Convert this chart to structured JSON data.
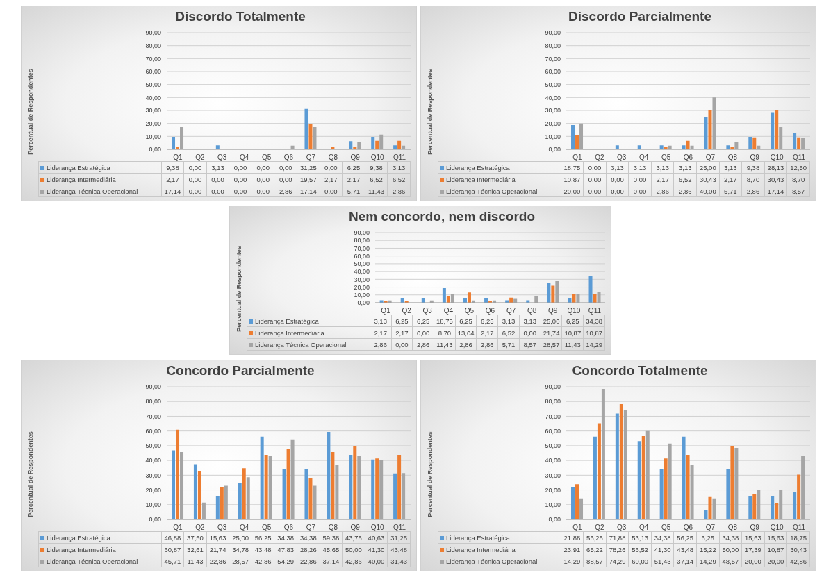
{
  "chart_data": [
    {
      "type": "bar",
      "title": "Discordo Totalmente",
      "ylabel": "Percentual de Respondentes",
      "categories": [
        "Q1",
        "Q2",
        "Q3",
        "Q4",
        "Q5",
        "Q6",
        "Q7",
        "Q8",
        "Q9",
        "Q10",
        "Q11"
      ],
      "ylim": [
        0,
        90
      ],
      "yticks": [
        {
          "value": 0,
          "label": "0,00"
        },
        {
          "value": 10,
          "label": "10,00"
        },
        {
          "value": 20,
          "label": "20,00"
        },
        {
          "value": 30,
          "label": "30,00"
        },
        {
          "value": 40,
          "label": "40,00"
        },
        {
          "value": 50,
          "label": "50,00"
        },
        {
          "value": 60,
          "label": "60,00"
        },
        {
          "value": 70,
          "label": "70,00"
        },
        {
          "value": 80,
          "label": "80,00"
        },
        {
          "value": 90,
          "label": "90,00"
        }
      ],
      "grid": "y",
      "legend": "bottom",
      "series": [
        {
          "name": "Liderança Estratégica",
          "color": "#5b9bd5",
          "values": [
            9.38,
            0,
            3.13,
            0,
            0,
            0,
            31.25,
            0,
            6.25,
            9.38,
            3.13
          ],
          "value_labels": [
            "9,38",
            "0,00",
            "3,13",
            "0,00",
            "0,00",
            "0,00",
            "31,25",
            "0,00",
            "6,25",
            "9,38",
            "3,13"
          ]
        },
        {
          "name": "Liderança Intermediária",
          "color": "#ed7d31",
          "values": [
            2.17,
            0,
            0,
            0,
            0,
            0,
            19.57,
            2.17,
            2.17,
            6.52,
            6.52
          ],
          "value_labels": [
            "2,17",
            "0,00",
            "0,00",
            "0,00",
            "0,00",
            "0,00",
            "19,57",
            "2,17",
            "2,17",
            "6,52",
            "6,52"
          ]
        },
        {
          "name": "Liderança Técnica Operacional",
          "color": "#a5a5a5",
          "values": [
            17.14,
            0,
            0,
            0,
            0,
            2.86,
            17.14,
            0,
            5.71,
            11.43,
            2.86
          ],
          "value_labels": [
            "17,14",
            "0,00",
            "0,00",
            "0,00",
            "0,00",
            "2,86",
            "17,14",
            "0,00",
            "5,71",
            "11,43",
            "2,86"
          ]
        }
      ]
    },
    {
      "type": "bar",
      "title": "Discordo Parcialmente",
      "ylabel": "Percentual de Respondentes",
      "categories": [
        "Q1",
        "Q2",
        "Q3",
        "Q4",
        "Q5",
        "Q6",
        "Q7",
        "Q8",
        "Q9",
        "Q10",
        "Q11"
      ],
      "ylim": [
        0,
        90
      ],
      "yticks": [
        {
          "value": 0,
          "label": "0,00"
        },
        {
          "value": 10,
          "label": "10,00"
        },
        {
          "value": 20,
          "label": "20,00"
        },
        {
          "value": 30,
          "label": "30,00"
        },
        {
          "value": 40,
          "label": "40,00"
        },
        {
          "value": 50,
          "label": "50,00"
        },
        {
          "value": 60,
          "label": "60,00"
        },
        {
          "value": 70,
          "label": "70,00"
        },
        {
          "value": 80,
          "label": "80,00"
        },
        {
          "value": 90,
          "label": "90,00"
        }
      ],
      "grid": "y",
      "legend": "bottom",
      "series": [
        {
          "name": "Liderança Estratégica",
          "color": "#5b9bd5",
          "values": [
            18.75,
            0,
            3.13,
            3.13,
            3.13,
            3.13,
            25,
            3.13,
            9.38,
            28.13,
            12.5
          ],
          "value_labels": [
            "18,75",
            "0,00",
            "3,13",
            "3,13",
            "3,13",
            "3,13",
            "25,00",
            "3,13",
            "9,38",
            "28,13",
            "12,50"
          ]
        },
        {
          "name": "Liderança Intermediária",
          "color": "#ed7d31",
          "values": [
            10.87,
            0,
            0,
            0,
            2.17,
            6.52,
            30.43,
            2.17,
            8.7,
            30.43,
            8.7
          ],
          "value_labels": [
            "10,87",
            "0,00",
            "0,00",
            "0,00",
            "2,17",
            "6,52",
            "30,43",
            "2,17",
            "8,70",
            "30,43",
            "8,70"
          ]
        },
        {
          "name": "Liderança Técnica Operacional",
          "color": "#a5a5a5",
          "values": [
            20,
            0,
            0,
            0,
            2.86,
            2.86,
            40,
            5.71,
            2.86,
            17.14,
            8.57
          ],
          "value_labels": [
            "20,00",
            "0,00",
            "0,00",
            "0,00",
            "2,86",
            "2,86",
            "40,00",
            "5,71",
            "2,86",
            "17,14",
            "8,57"
          ]
        }
      ]
    },
    {
      "type": "bar",
      "title": "Nem concordo, nem discordo",
      "ylabel": "Percentual de Respondentes",
      "categories": [
        "Q1",
        "Q2",
        "Q3",
        "Q4",
        "Q5",
        "Q6",
        "Q7",
        "Q8",
        "Q9",
        "Q10",
        "Q11"
      ],
      "ylim": [
        0,
        90
      ],
      "yticks": [
        {
          "value": 0,
          "label": "0,00"
        },
        {
          "value": 10,
          "label": "10,00"
        },
        {
          "value": 20,
          "label": "20,00"
        },
        {
          "value": 30,
          "label": "30,00"
        },
        {
          "value": 40,
          "label": "40,00"
        },
        {
          "value": 50,
          "label": "50,00"
        },
        {
          "value": 60,
          "label": "60,00"
        },
        {
          "value": 70,
          "label": "70,00"
        },
        {
          "value": 80,
          "label": "80,00"
        },
        {
          "value": 90,
          "label": "90,00"
        }
      ],
      "grid": "y",
      "legend": "bottom",
      "series": [
        {
          "name": "Liderança Estratégica",
          "color": "#5b9bd5",
          "values": [
            3.13,
            6.25,
            6.25,
            18.75,
            6.25,
            6.25,
            3.13,
            3.13,
            25,
            6.25,
            34.38
          ],
          "value_labels": [
            "3,13",
            "6,25",
            "6,25",
            "18,75",
            "6,25",
            "6,25",
            "3,13",
            "3,13",
            "25,00",
            "6,25",
            "34,38"
          ]
        },
        {
          "name": "Liderança Intermediária",
          "color": "#ed7d31",
          "values": [
            2.17,
            2.17,
            0,
            8.7,
            13.04,
            2.17,
            6.52,
            0,
            21.74,
            10.87,
            10.87
          ],
          "value_labels": [
            "2,17",
            "2,17",
            "0,00",
            "8,70",
            "13,04",
            "2,17",
            "6,52",
            "0,00",
            "21,74",
            "10,87",
            "10,87"
          ]
        },
        {
          "name": "Liderança Técnica Operacional",
          "color": "#a5a5a5",
          "values": [
            2.86,
            0,
            2.86,
            11.43,
            2.86,
            2.86,
            5.71,
            8.57,
            28.57,
            11.43,
            14.29
          ],
          "value_labels": [
            "2,86",
            "0,00",
            "2,86",
            "11,43",
            "2,86",
            "2,86",
            "5,71",
            "8,57",
            "28,57",
            "11,43",
            "14,29"
          ]
        }
      ]
    },
    {
      "type": "bar",
      "title": "Concordo Parcialmente",
      "ylabel": "Percentual de Respondentes",
      "categories": [
        "Q1",
        "Q2",
        "Q3",
        "Q4",
        "Q5",
        "Q6",
        "Q7",
        "Q8",
        "Q9",
        "Q10",
        "Q11"
      ],
      "ylim": [
        0,
        90
      ],
      "yticks": [
        {
          "value": 0,
          "label": "0,00"
        },
        {
          "value": 10,
          "label": "10,00"
        },
        {
          "value": 20,
          "label": "20,00"
        },
        {
          "value": 30,
          "label": "30,00"
        },
        {
          "value": 40,
          "label": "40,00"
        },
        {
          "value": 50,
          "label": "50,00"
        },
        {
          "value": 60,
          "label": "60,00"
        },
        {
          "value": 70,
          "label": "70,00"
        },
        {
          "value": 80,
          "label": "80,00"
        },
        {
          "value": 90,
          "label": "90,00"
        }
      ],
      "grid": "y",
      "legend": "bottom",
      "series": [
        {
          "name": "Liderança Estratégica",
          "color": "#5b9bd5",
          "values": [
            46.88,
            37.5,
            15.63,
            25,
            56.25,
            34.38,
            34.38,
            59.38,
            43.75,
            40.63,
            31.25
          ],
          "value_labels": [
            "46,88",
            "37,50",
            "15,63",
            "25,00",
            "56,25",
            "34,38",
            "34,38",
            "59,38",
            "43,75",
            "40,63",
            "31,25"
          ]
        },
        {
          "name": "Liderança Intermediária",
          "color": "#ed7d31",
          "values": [
            60.87,
            32.61,
            21.74,
            34.78,
            43.48,
            47.83,
            28.26,
            45.65,
            50,
            41.3,
            43.48
          ],
          "value_labels": [
            "60,87",
            "32,61",
            "21,74",
            "34,78",
            "43,48",
            "47,83",
            "28,26",
            "45,65",
            "50,00",
            "41,30",
            "43,48"
          ]
        },
        {
          "name": "Liderança Técnica Operacional",
          "color": "#a5a5a5",
          "values": [
            45.71,
            11.43,
            22.86,
            28.57,
            42.86,
            54.29,
            22.86,
            37.14,
            42.86,
            40,
            31.43
          ],
          "value_labels": [
            "45,71",
            "11,43",
            "22,86",
            "28,57",
            "42,86",
            "54,29",
            "22,86",
            "37,14",
            "42,86",
            "40,00",
            "31,43"
          ]
        }
      ]
    },
    {
      "type": "bar",
      "title": "Concordo Totalmente",
      "ylabel": "Percentual de Respondentes",
      "categories": [
        "Q1",
        "Q2",
        "Q3",
        "Q4",
        "Q5",
        "Q6",
        "Q7",
        "Q8",
        "Q9",
        "Q10",
        "Q11"
      ],
      "ylim": [
        0,
        90
      ],
      "yticks": [
        {
          "value": 0,
          "label": "0,00"
        },
        {
          "value": 10,
          "label": "10,00"
        },
        {
          "value": 20,
          "label": "20,00"
        },
        {
          "value": 30,
          "label": "30,00"
        },
        {
          "value": 40,
          "label": "40,00"
        },
        {
          "value": 50,
          "label": "50,00"
        },
        {
          "value": 60,
          "label": "60,00"
        },
        {
          "value": 70,
          "label": "70,00"
        },
        {
          "value": 80,
          "label": "80,00"
        },
        {
          "value": 90,
          "label": "90,00"
        }
      ],
      "grid": "y",
      "legend": "bottom",
      "series": [
        {
          "name": "Liderança Estratégica",
          "color": "#5b9bd5",
          "values": [
            21.88,
            56.25,
            71.88,
            53.13,
            34.38,
            56.25,
            6.25,
            34.38,
            15.63,
            15.63,
            18.75
          ],
          "value_labels": [
            "21,88",
            "56,25",
            "71,88",
            "53,13",
            "34,38",
            "56,25",
            "6,25",
            "34,38",
            "15,63",
            "15,63",
            "18,75"
          ]
        },
        {
          "name": "Liderança Intermediária",
          "color": "#ed7d31",
          "values": [
            23.91,
            65.22,
            78.26,
            56.52,
            41.3,
            43.48,
            15.22,
            50,
            17.39,
            10.87,
            30.43
          ],
          "value_labels": [
            "23,91",
            "65,22",
            "78,26",
            "56,52",
            "41,30",
            "43,48",
            "15,22",
            "50,00",
            "17,39",
            "10,87",
            "30,43"
          ]
        },
        {
          "name": "Liderança Técnica Operacional",
          "color": "#a5a5a5",
          "values": [
            14.29,
            88.57,
            74.29,
            60,
            51.43,
            37.14,
            14.29,
            48.57,
            20,
            20,
            42.86
          ],
          "value_labels": [
            "14,29",
            "88,57",
            "74,29",
            "60,00",
            "51,43",
            "37,14",
            "14,29",
            "48,57",
            "20,00",
            "20,00",
            "42,86"
          ]
        }
      ]
    }
  ]
}
